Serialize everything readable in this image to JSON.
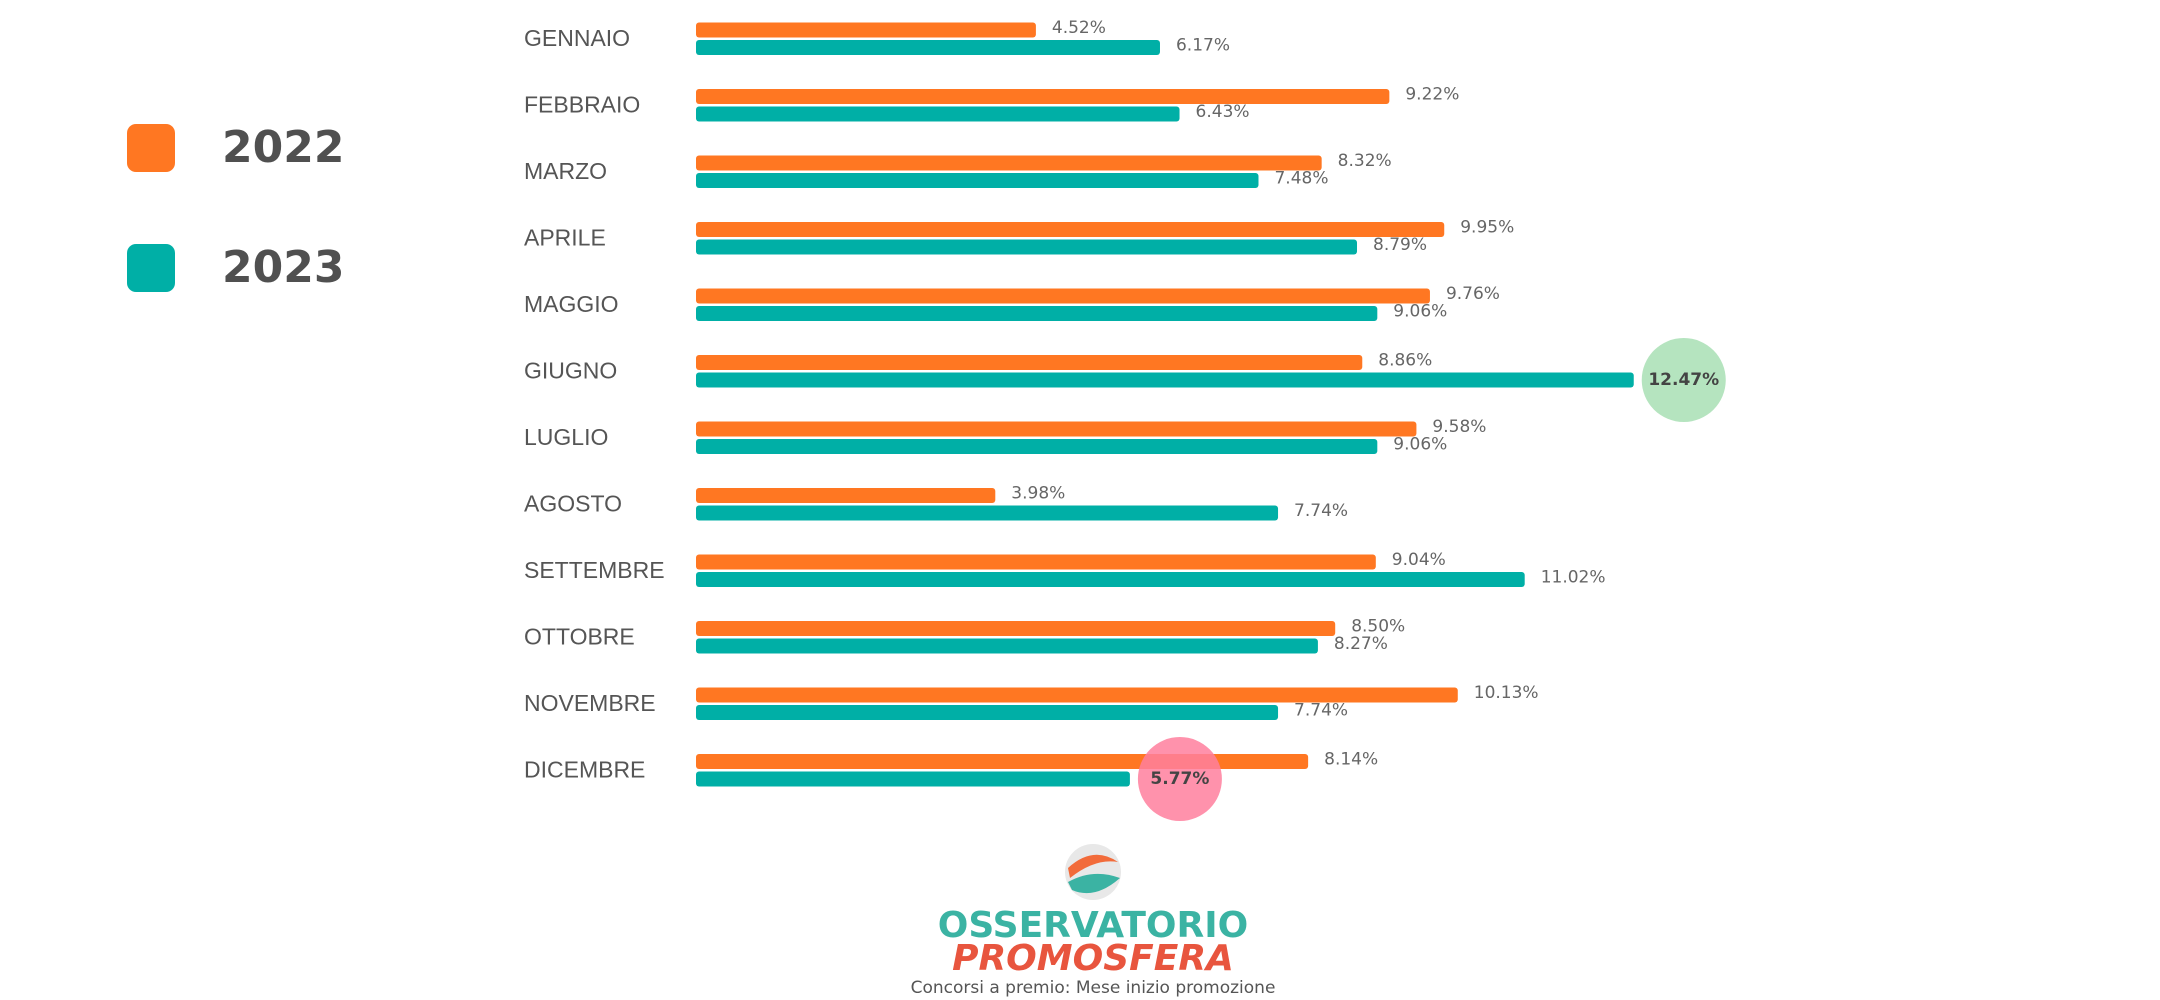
{
  "chart_data": {
    "type": "bar",
    "orientation": "horizontal",
    "categories": [
      "GENNAIO",
      "FEBBRAIO",
      "MARZO",
      "APRILE",
      "MAGGIO",
      "GIUGNO",
      "LUGLIO",
      "AGOSTO",
      "SETTEMBRE",
      "OTTOBRE",
      "NOVEMBRE",
      "DICEMBRE"
    ],
    "series": [
      {
        "name": "2022",
        "color": "#ff7722",
        "values": [
          4.52,
          9.22,
          8.32,
          9.95,
          9.76,
          8.86,
          9.58,
          3.98,
          9.04,
          8.5,
          10.13,
          8.14
        ],
        "value_labels": [
          "4.52%",
          "9.22%",
          "8.32%",
          "9.95%",
          "9.76%",
          "8.86%",
          "9.58%",
          "3.98%",
          "9.04%",
          "8.50%",
          "10.13%",
          "8.14%"
        ]
      },
      {
        "name": "2023",
        "color": "#00afa6",
        "values": [
          6.17,
          6.43,
          7.48,
          8.79,
          9.06,
          12.47,
          9.06,
          7.74,
          11.02,
          8.27,
          7.74,
          5.77
        ],
        "value_labels": [
          "6.17%",
          "6.43%",
          "7.48%",
          "8.79%",
          "9.06%",
          "12.47%",
          "9.06%",
          "7.74%",
          "11.02%",
          "8.27%",
          "7.74%",
          "5.77%"
        ]
      }
    ],
    "highlights": [
      {
        "series": 1,
        "index": 5,
        "color": "#a8dfb4"
      },
      {
        "series": 1,
        "index": 11,
        "color": "#ff7f9e"
      }
    ],
    "logo": {
      "line1": "OSSERVATORIO",
      "line2": "PROMOSFERA"
    },
    "caption": "Concorsi a premio: Mese inizio promozione"
  }
}
